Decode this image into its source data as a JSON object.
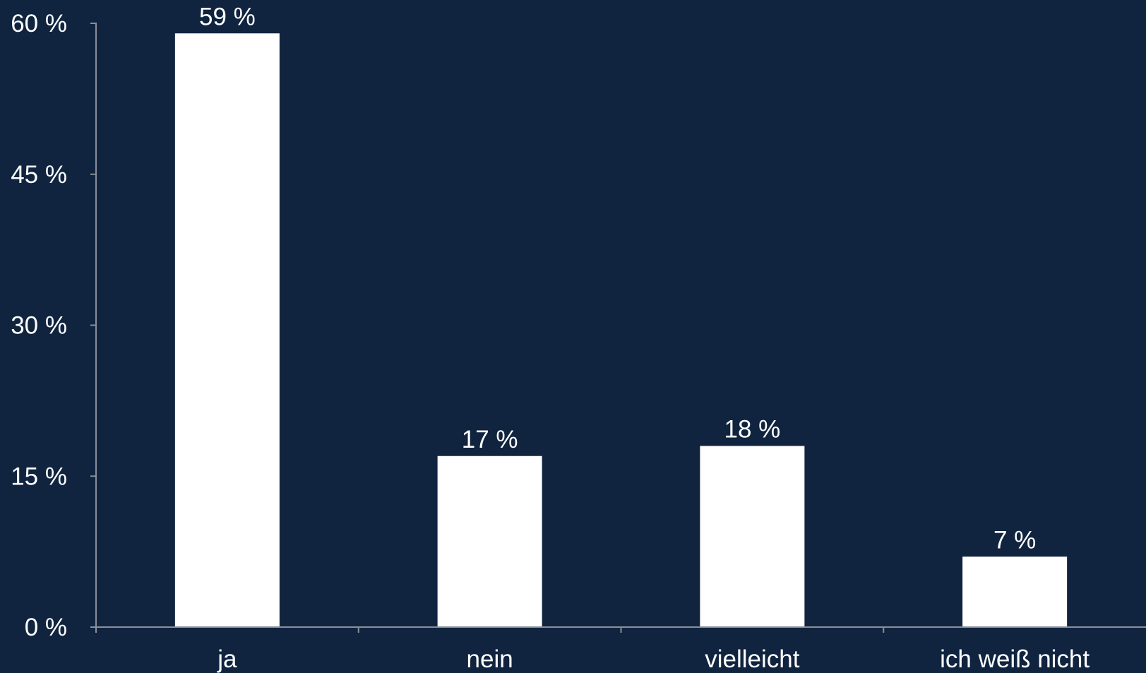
{
  "chart_data": {
    "type": "bar",
    "categories": [
      "ja",
      "nein",
      "vielleicht",
      "ich weiß nicht"
    ],
    "values": [
      59,
      17,
      18,
      7
    ],
    "data_labels": [
      "59 %",
      "17 %",
      "18 %",
      "7 %"
    ],
    "ylim": [
      0,
      60
    ],
    "yticks": [
      0,
      15,
      30,
      45,
      60
    ],
    "ytick_labels": [
      "0 %",
      "15 %",
      "30 %",
      "45 %",
      "60 %"
    ],
    "grid": false,
    "colors": {
      "background": "#10243f",
      "bar": "#ffffff",
      "axis": "#8a8f98",
      "text": "#ffffff"
    }
  }
}
